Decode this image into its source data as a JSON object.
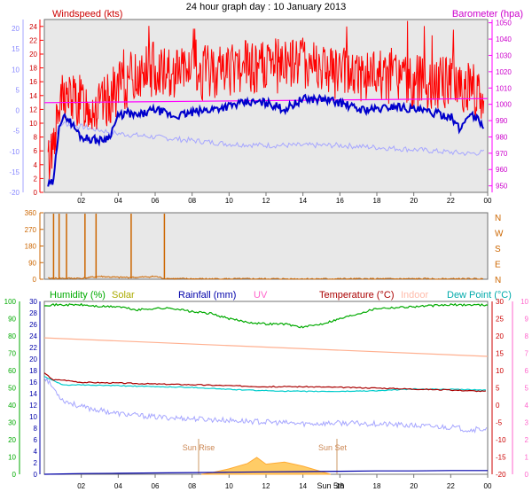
{
  "title": "24 hour graph day : 10 January 2013",
  "chart_data": [
    {
      "panel": "wind-baro",
      "type": "line",
      "left_label": "Windspeed (kts)",
      "right_label": "Barometer (hpa)",
      "left_ticks": [
        "24",
        "22",
        "20",
        "18",
        "16",
        "14",
        "12",
        "10",
        "8",
        "6",
        "4",
        "2",
        "0"
      ],
      "temp_ticks": [
        "20",
        "15",
        "10",
        "5",
        "0",
        "-5",
        "-10",
        "-15",
        "-20"
      ],
      "right_ticks": [
        "1050",
        "1040",
        "1030",
        "1020",
        "1010",
        "1000",
        "990",
        "980",
        "970",
        "960",
        "950"
      ],
      "x_ticks": [
        "02",
        "04",
        "06",
        "08",
        "10",
        "12",
        "14",
        "16",
        "18",
        "20",
        "22",
        "00"
      ],
      "ylim_wind": [
        0,
        25
      ],
      "ylim_baro": [
        946,
        1052
      ],
      "colors": {
        "gust": "#ff0000",
        "avg": "#0000cc",
        "baro": "#ff00ff",
        "secondary": "#a6a6ff"
      },
      "series": [
        {
          "key": "avg",
          "x": [
            0.2,
            0.5,
            0.8,
            1.2,
            2.0,
            3.0,
            3.5,
            4.0,
            4.5,
            5.0,
            6.0,
            7.0,
            8.0,
            9.0,
            10.0,
            11.0,
            12.0,
            13.0,
            14.0,
            15.0,
            16.0,
            17.0,
            18.0,
            19.0,
            20.0,
            21.0,
            22.0,
            22.5,
            23.0,
            23.5,
            23.8
          ],
          "y": [
            1,
            1.5,
            10,
            11,
            8,
            7.5,
            8,
            11,
            11.5,
            11,
            12,
            11,
            11.5,
            12,
            12.5,
            13,
            13,
            12,
            13.5,
            13.5,
            13,
            12,
            12,
            12.5,
            12,
            11.5,
            11,
            9,
            11.5,
            10.5,
            9.5
          ]
        },
        {
          "key": "gust_mean",
          "x": [
            0.2,
            1,
            2,
            3,
            4,
            5,
            6,
            8,
            10,
            12,
            14,
            16,
            18,
            20,
            22,
            23,
            23.8
          ],
          "y": [
            4,
            14,
            13,
            12,
            15,
            17,
            18,
            17,
            18,
            18,
            19,
            17,
            17,
            16,
            16,
            15,
            14
          ]
        },
        {
          "key": "baro",
          "x": [
            0,
            24
          ],
          "y": [
            1001,
            1003.5
          ]
        },
        {
          "key": "secondary",
          "x": [
            0.2,
            1,
            2,
            3,
            4,
            6,
            8,
            10,
            12,
            14,
            16,
            18,
            20,
            22,
            23,
            23.8
          ],
          "y": [
            7,
            10,
            9.5,
            9,
            8.5,
            8,
            7.5,
            7,
            6.8,
            6.8,
            6.8,
            6.5,
            6.2,
            5.8,
            5.6,
            5.8
          ]
        }
      ]
    },
    {
      "panel": "direction",
      "type": "line",
      "left_ticks": [
        "360",
        "270",
        "180",
        "90",
        "0"
      ],
      "right_ticks": [
        "N",
        "W",
        "S",
        "E",
        "N"
      ],
      "ylim": [
        0,
        360
      ],
      "color": "#cc6600",
      "spikes_x": [
        0.5,
        0.8,
        1.2,
        2.2,
        2.8,
        4.7,
        6.5
      ],
      "series": [
        {
          "name": "Wind direction",
          "x": [
            0.2,
            1,
            2,
            3,
            4,
            5,
            6,
            6.5,
            7,
            8,
            10,
            12,
            14,
            16,
            18,
            20,
            22,
            23.8
          ],
          "y": [
            5,
            5,
            5,
            15,
            10,
            10,
            15,
            5,
            3,
            2,
            2,
            2,
            2,
            2,
            2,
            2,
            2,
            2
          ]
        }
      ]
    },
    {
      "panel": "humidity-temp",
      "type": "line",
      "legend": {
        "humidity": "Humidity (%)",
        "solar": "Solar",
        "rainfall": "Rainfall (mm)",
        "uv": "UV",
        "temperature": "Temperature (°C)",
        "indoor": "Indoor",
        "dewpoint": "Dew Point (°C)"
      },
      "legend_colors": {
        "humidity": "#00aa00",
        "solar": "#aaaa00",
        "rainfall": "#0000aa",
        "uv": "#ff66cc",
        "temperature": "#aa0000",
        "indoor": "#ffbbaa",
        "dewpoint": "#00cccc"
      },
      "hum_ticks": [
        "100",
        "90",
        "80",
        "70",
        "60",
        "50",
        "40",
        "30",
        "20",
        "10",
        "0"
      ],
      "rain_ticks": [
        "30",
        "28",
        "26",
        "24",
        "22",
        "20",
        "18",
        "16",
        "14",
        "12",
        "10",
        "8",
        "6",
        "4",
        "2",
        "0"
      ],
      "temp_ticks": [
        "30",
        "25",
        "20",
        "15",
        "10",
        "5",
        "0",
        "-5",
        "-10",
        "-15",
        "-20"
      ],
      "uv_ticks": [
        "10",
        "9",
        "8",
        "7",
        "6",
        "5",
        "4",
        "3",
        "2",
        "1",
        "0"
      ],
      "x_ticks": [
        "02",
        "04",
        "06",
        "08",
        "10",
        "12",
        "14",
        "16",
        "18",
        "20",
        "22",
        "00"
      ],
      "ylim_temp": [
        -20,
        30
      ],
      "ylim_hum": [
        0,
        100
      ],
      "annotations": {
        "sunrise": "Sun Rise",
        "sunset": "Sun Set",
        "sun5th": "Sun 5th"
      },
      "series": [
        {
          "key": "humidity",
          "x": [
            0,
            2,
            3,
            4,
            5,
            6,
            7,
            8,
            9,
            10,
            11,
            12,
            13,
            14,
            15,
            16,
            17,
            18,
            20,
            22,
            24
          ],
          "y": [
            98,
            98,
            97,
            97,
            95,
            96,
            96,
            94,
            93,
            90,
            88,
            87,
            87,
            85,
            87,
            90,
            93,
            96,
            97,
            98,
            98
          ]
        },
        {
          "key": "indoor",
          "x": [
            0,
            24
          ],
          "y": [
            20.5,
            15
          ]
        },
        {
          "key": "temperature",
          "x": [
            0,
            0.5,
            1,
            2,
            4,
            6,
            8,
            10,
            12,
            14,
            16,
            18,
            20,
            22,
            24
          ],
          "y": [
            10,
            8,
            8,
            7.3,
            7.1,
            6.8,
            6.6,
            6.3,
            6,
            6,
            5.8,
            5.6,
            5.3,
            5,
            4.6
          ]
        },
        {
          "key": "dewpoint",
          "x": [
            0,
            1,
            2,
            4,
            6,
            8,
            10,
            12,
            14,
            16,
            18,
            20,
            22,
            24
          ],
          "y": [
            9,
            6.5,
            6.5,
            6.3,
            6,
            5.8,
            5.2,
            4.8,
            4.6,
            4.6,
            4.8,
            5.3,
            5.2,
            5.0
          ]
        },
        {
          "key": "secondary",
          "x": [
            0,
            1,
            2,
            3,
            4,
            6,
            8,
            10,
            12,
            14,
            16,
            18,
            20,
            22,
            23,
            24
          ],
          "y": [
            9,
            2,
            0,
            -1,
            -2,
            -3,
            -3.5,
            -4,
            -4.5,
            -5,
            -4.8,
            -5,
            -5.6,
            -6,
            -6.8,
            -6.5
          ]
        },
        {
          "key": "solar",
          "x": [
            8.5,
            9,
            10,
            11,
            11.5,
            12,
            13,
            14,
            15,
            15.5
          ],
          "y": [
            0,
            0.2,
            0.8,
            1.6,
            2.5,
            1.5,
            1.8,
            1.2,
            0.4,
            0
          ]
        },
        {
          "key": "rainfall",
          "x": [
            0,
            1,
            2,
            4,
            6,
            8,
            10,
            12,
            14,
            16,
            18,
            20,
            22,
            24
          ],
          "y": [
            0,
            0.1,
            0.2,
            0.3,
            0.4,
            0.5,
            0.6,
            0.7,
            0.8,
            0.9,
            1.0,
            1.0,
            1.1,
            1.1
          ]
        }
      ]
    }
  ]
}
